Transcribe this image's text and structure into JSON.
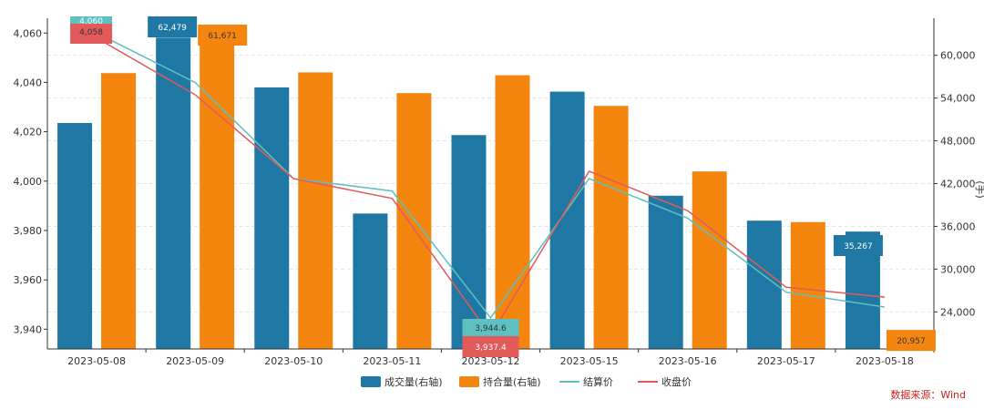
{
  "colors": {
    "volume": "#1f77a4",
    "open_interest": "#f4860f",
    "settle": "#5ec0c0",
    "close": "#e25a5a",
    "grid": "#e5e5e5",
    "axis": "#333333"
  },
  "source": "数据来源：Wind",
  "right_unit": "(手)",
  "chart_data": {
    "type": "bar",
    "categories": [
      "2023-05-08",
      "2023-05-09",
      "2023-05-10",
      "2023-05-11",
      "2023-05-12",
      "2023-05-15",
      "2023-05-16",
      "2023-05-17",
      "2023-05-18"
    ],
    "left_axis": {
      "min": 3932,
      "max": 4066,
      "ticks": [
        3940,
        3960,
        3980,
        4000,
        4020,
        4040,
        4060
      ],
      "tick_labels": [
        "3,940",
        "3,960",
        "3,980",
        "4,000",
        "4,020",
        "4,040",
        "4,060"
      ]
    },
    "right_axis": {
      "min": 18800,
      "max": 65200,
      "ticks": [
        24000,
        30000,
        36000,
        42000,
        48000,
        54000,
        60000
      ],
      "tick_labels": [
        "24,000",
        "30,000",
        "36,000",
        "42,000",
        "48,000",
        "54,000",
        "60,000"
      ]
    },
    "bar_series": [
      {
        "name": "成交量(右轴)",
        "axis": "right",
        "values": [
          50500,
          62479,
          55500,
          37800,
          48800,
          54900,
          40300,
          36800,
          35267
        ]
      },
      {
        "name": "持合量(右轴)",
        "axis": "right",
        "values": [
          57500,
          61671,
          57600,
          54700,
          57200,
          52900,
          43700,
          36600,
          20957
        ]
      }
    ],
    "line_series": [
      {
        "name": "结算价",
        "axis": "left",
        "values": [
          4060,
          4040,
          4001,
          3996,
          3944.6,
          4001,
          3985,
          3955,
          3949
        ]
      },
      {
        "name": "收盘价",
        "axis": "left",
        "values": [
          4058,
          4035,
          4001,
          3993,
          3937.4,
          4004,
          3988,
          3957,
          3953
        ]
      }
    ],
    "data_labels": [
      {
        "series": "结算价",
        "index": 0,
        "text": "4,060"
      },
      {
        "series": "收盘价",
        "index": 0,
        "text": "4,058"
      },
      {
        "series": "成交量(右轴)",
        "index": 1,
        "text": "62,479"
      },
      {
        "series": "持合量(右轴)",
        "index": 1,
        "text": "61,671"
      },
      {
        "series": "结算价",
        "index": 4,
        "text": "3,944.6"
      },
      {
        "series": "收盘价",
        "index": 4,
        "text": "3,937.4"
      },
      {
        "series": "成交量(右轴)",
        "index": 8,
        "text": "35,267"
      },
      {
        "series": "持合量(右轴)",
        "index": 8,
        "text": "20,957"
      }
    ],
    "legend": {
      "placement": "bottom-center",
      "entries": [
        "成交量(右轴)",
        "持合量(右轴)",
        "结算价",
        "收盘价"
      ]
    },
    "grid": true
  }
}
